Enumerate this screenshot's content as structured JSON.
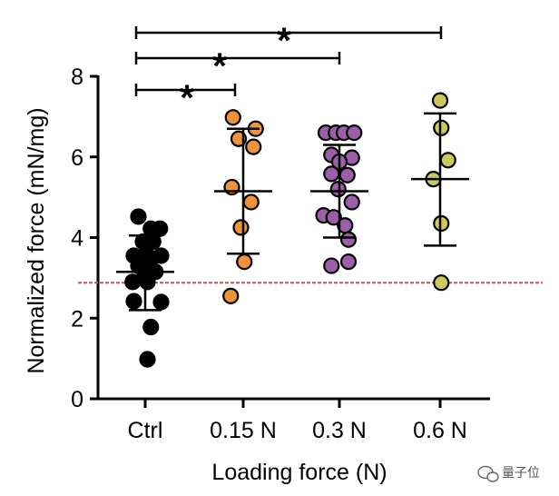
{
  "chart_data": {
    "type": "scatter",
    "xlabel": "Loading force (N)",
    "ylabel": "Normalized force (mN/mg)",
    "ylim": [
      0,
      8
    ],
    "yticks": [
      0,
      2,
      4,
      6,
      8
    ],
    "grid": false,
    "categories": [
      "Ctrl",
      "0.15 N",
      "0.3 N",
      "0.6 N"
    ],
    "series": [
      {
        "category": "Ctrl",
        "color": "#000000",
        "mean": 3.15,
        "sd_low": 2.2,
        "sd_high": 4.05,
        "points": [
          {
            "offset": -0.3,
            "y": 4.52
          },
          {
            "offset": 0.25,
            "y": 4.22
          },
          {
            "offset": 0.65,
            "y": 4.22
          },
          {
            "offset": -0.1,
            "y": 3.9
          },
          {
            "offset": 0.35,
            "y": 3.9
          },
          {
            "offset": -0.5,
            "y": 3.55
          },
          {
            "offset": 0.05,
            "y": 3.6
          },
          {
            "offset": 0.7,
            "y": 3.55
          },
          {
            "offset": -0.3,
            "y": 3.3
          },
          {
            "offset": 0.2,
            "y": 3.3
          },
          {
            "offset": -0.05,
            "y": 3.18
          },
          {
            "offset": 0.45,
            "y": 3.15
          },
          {
            "offset": -0.55,
            "y": 2.9
          },
          {
            "offset": 0.1,
            "y": 2.9
          },
          {
            "offset": -0.5,
            "y": 2.42
          },
          {
            "offset": 0.7,
            "y": 2.4
          },
          {
            "offset": 0.25,
            "y": 1.78
          },
          {
            "offset": 0.1,
            "y": 0.98
          }
        ]
      },
      {
        "category": "0.15 N",
        "color": "#f0923a",
        "mean": 5.15,
        "sd_low": 3.6,
        "sd_high": 6.7,
        "points": [
          {
            "offset": -0.45,
            "y": 6.98
          },
          {
            "offset": 0.55,
            "y": 6.7
          },
          {
            "offset": -0.2,
            "y": 6.45
          },
          {
            "offset": 0.45,
            "y": 6.25
          },
          {
            "offset": -0.5,
            "y": 5.25
          },
          {
            "offset": 0.35,
            "y": 4.88
          },
          {
            "offset": -0.1,
            "y": 4.25
          },
          {
            "offset": 0.05,
            "y": 3.4
          },
          {
            "offset": -0.55,
            "y": 2.55
          }
        ]
      },
      {
        "category": "0.3 N",
        "color": "#9b5ea8",
        "mean": 5.15,
        "sd_low": 4.0,
        "sd_high": 6.3,
        "points": [
          {
            "offset": -0.6,
            "y": 6.6
          },
          {
            "offset": -0.15,
            "y": 6.6
          },
          {
            "offset": 0.2,
            "y": 6.6
          },
          {
            "offset": 0.65,
            "y": 6.6
          },
          {
            "offset": -0.35,
            "y": 6.05
          },
          {
            "offset": 0.55,
            "y": 5.98
          },
          {
            "offset": 0.0,
            "y": 5.88
          },
          {
            "offset": -0.35,
            "y": 5.58
          },
          {
            "offset": 0.35,
            "y": 5.55
          },
          {
            "offset": -0.05,
            "y": 5.2
          },
          {
            "offset": 0.55,
            "y": 4.88
          },
          {
            "offset": -0.7,
            "y": 4.55
          },
          {
            "offset": -0.25,
            "y": 4.5
          },
          {
            "offset": 0.25,
            "y": 4.3
          },
          {
            "offset": 0.4,
            "y": 3.95
          },
          {
            "offset": 0.4,
            "y": 3.4
          },
          {
            "offset": -0.35,
            "y": 3.3
          }
        ]
      },
      {
        "category": "0.6 N",
        "color": "#cdc85a",
        "mean": 5.45,
        "sd_low": 3.8,
        "sd_high": 7.08,
        "points": [
          {
            "offset": 0.0,
            "y": 7.4
          },
          {
            "offset": 0.05,
            "y": 6.72
          },
          {
            "offset": 0.35,
            "y": 5.92
          },
          {
            "offset": -0.3,
            "y": 5.45
          },
          {
            "offset": 0.05,
            "y": 4.35
          },
          {
            "offset": 0.05,
            "y": 2.88
          }
        ]
      }
    ],
    "reference_line": {
      "y": 2.88,
      "color": "#c0505a",
      "style": "dashed"
    },
    "significance": [
      {
        "from": "Ctrl",
        "to": "0.15 N",
        "label": "*"
      },
      {
        "from": "Ctrl",
        "to": "0.3 N",
        "label": "*"
      },
      {
        "from": "Ctrl",
        "to": "0.6 N",
        "label": "*"
      }
    ]
  },
  "watermark": {
    "text": "量子位",
    "icon": "wechat-icon"
  }
}
